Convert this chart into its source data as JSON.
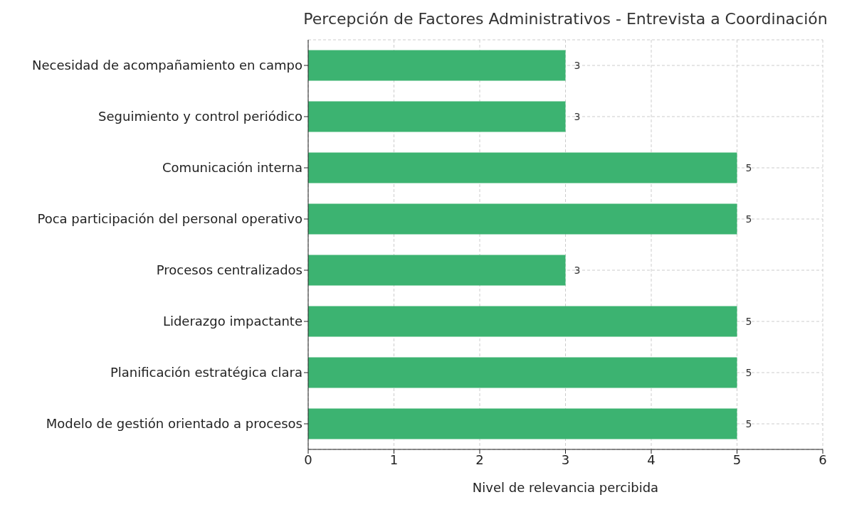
{
  "chart_data": {
    "type": "bar",
    "orientation": "horizontal",
    "title": "Percepción de Factores Administrativos - Entrevista a Coordinación",
    "xlabel": "Nivel de relevancia percibida",
    "categories": [
      "Necesidad de acompañamiento en campo",
      "Seguimiento y control periódico",
      "Comunicación interna",
      "Poca participación del personal operativo",
      "Procesos centralizados",
      "Liderazgo impactante",
      "Planificación estratégica clara",
      "Modelo de gestión orientado a procesos"
    ],
    "values": [
      3,
      3,
      5,
      5,
      3,
      5,
      5,
      5
    ],
    "color": "#3cb371",
    "xlim": [
      0,
      6
    ],
    "xticks": [
      0,
      1,
      2,
      3,
      4,
      5,
      6
    ],
    "grid": true,
    "data_labels": true
  }
}
